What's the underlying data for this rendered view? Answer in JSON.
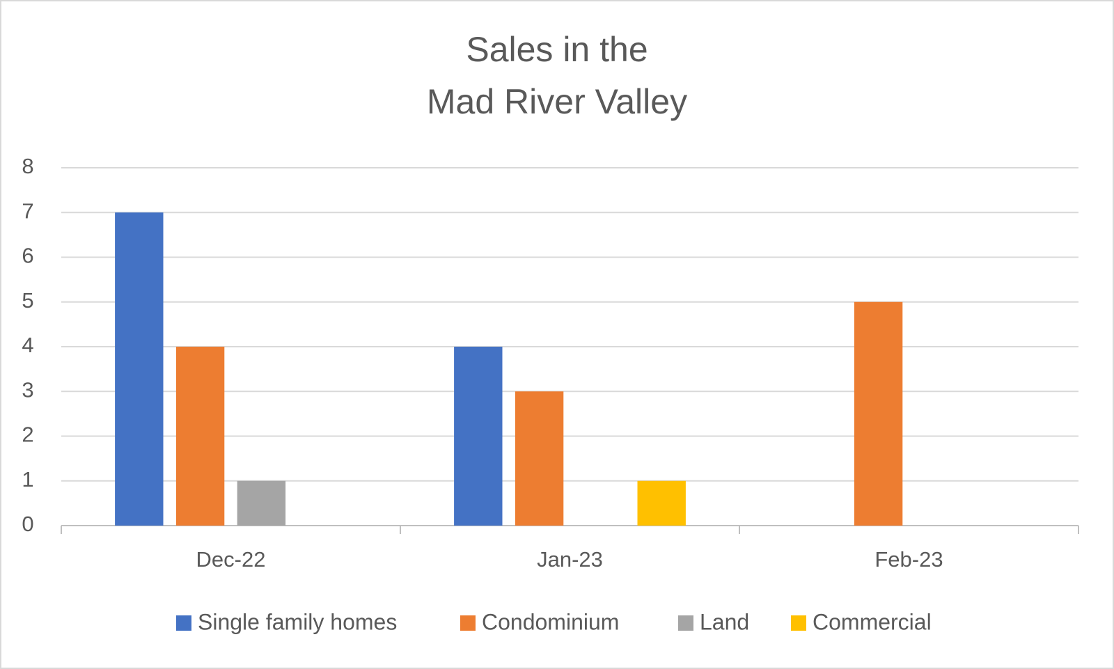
{
  "chart_data": {
    "type": "bar",
    "title": [
      "Sales in the",
      "Mad River Valley"
    ],
    "categories": [
      "Dec-22",
      "Jan-23",
      "Feb-23"
    ],
    "series": [
      {
        "name": "Single family homes",
        "color": "#4472c4",
        "values": [
          7,
          4,
          0
        ]
      },
      {
        "name": "Condominium",
        "color": "#ed7d31",
        "values": [
          4,
          3,
          5
        ]
      },
      {
        "name": "Land",
        "color": "#a5a5a5",
        "values": [
          1,
          0,
          0
        ]
      },
      {
        "name": "Commercial",
        "color": "#ffc000",
        "values": [
          0,
          1,
          0
        ]
      }
    ],
    "ylim": [
      0,
      8
    ],
    "yticks": [
      0,
      1,
      2,
      3,
      4,
      5,
      6,
      7,
      8
    ],
    "grid": true,
    "legend": "bottom"
  }
}
